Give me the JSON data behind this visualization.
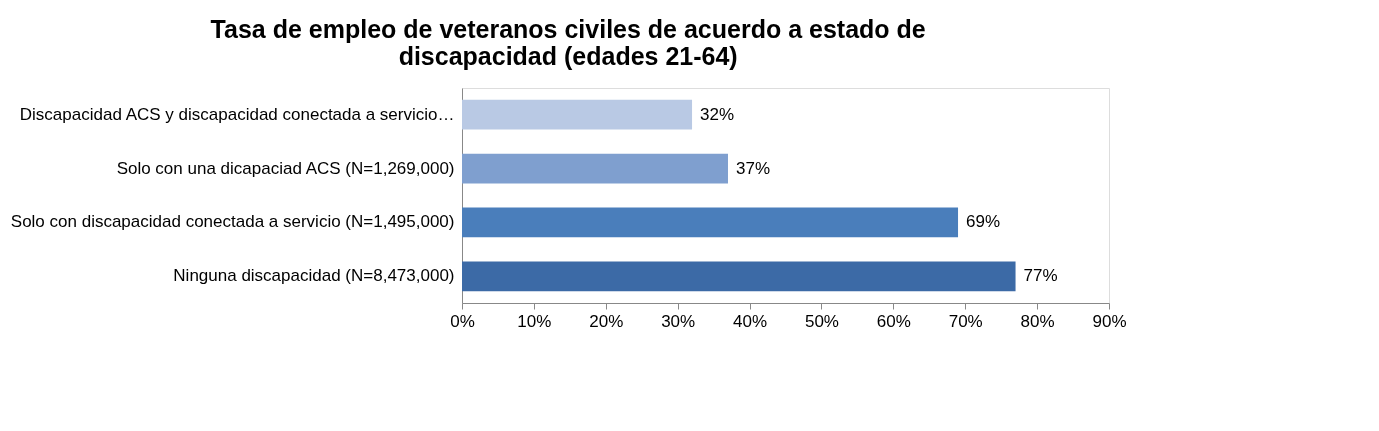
{
  "chart_data": {
    "type": "bar",
    "orientation": "horizontal",
    "title": "Tasa de empleo de veteranos civiles de acuerdo a estado de discapacidad (edades 21-64)",
    "categories": [
      "Discapacidad ACS y discapacidad conectada a servicio…",
      "Solo con una dicapaciad ACS (N=1,269,000)",
      "Solo con discapacidad conectada a servicio (N=1,495,000)",
      "Ninguna discapacidad (N=8,473,000)"
    ],
    "values": [
      32,
      37,
      69,
      77
    ],
    "colors": [
      "#b9c9e4",
      "#7f9fcf",
      "#4a7ebb",
      "#3c6aa6"
    ],
    "value_labels": [
      "32%",
      "37%",
      "69%",
      "77%"
    ],
    "xlim": [
      0,
      90
    ],
    "xticks": [
      {
        "value": 0,
        "label": "0%"
      },
      {
        "value": 10,
        "label": "10%"
      },
      {
        "value": 20,
        "label": "20%"
      },
      {
        "value": 30,
        "label": "30%"
      },
      {
        "value": 40,
        "label": "40%"
      },
      {
        "value": 50,
        "label": "50%"
      },
      {
        "value": 60,
        "label": "60%"
      },
      {
        "value": 70,
        "label": "70%"
      },
      {
        "value": 80,
        "label": "80%"
      },
      {
        "value": 90,
        "label": "90%"
      }
    ],
    "grid": false
  }
}
